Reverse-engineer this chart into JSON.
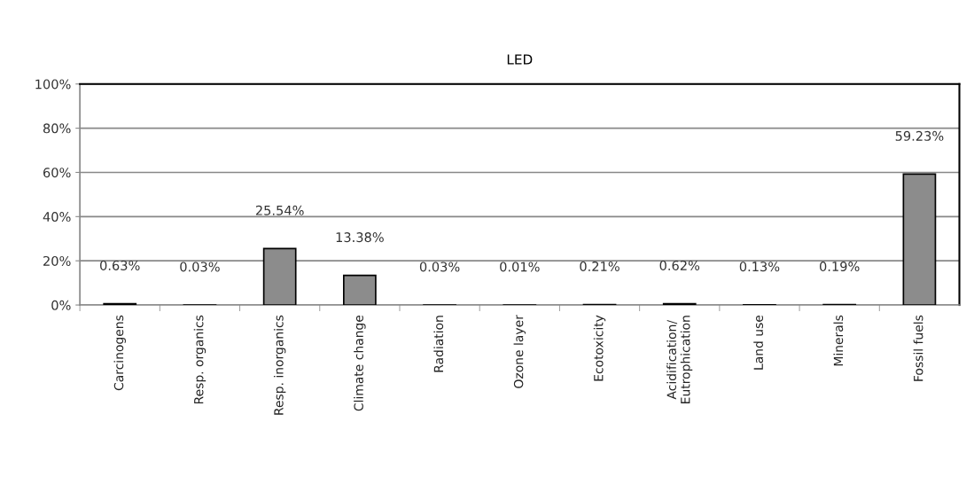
{
  "chart_data": {
    "type": "bar",
    "title": "LED",
    "categories": [
      "Carcinogens",
      "Resp. organics",
      "Resp. inorganics",
      "Climate change",
      "Radiation",
      "Ozone layer",
      "Ecotoxicity",
      "Acidification/\nEutrophication",
      "Land use",
      "Minerals",
      "Fossil fuels"
    ],
    "values": [
      0.63,
      0.03,
      25.54,
      13.38,
      0.03,
      0.01,
      0.21,
      0.62,
      0.13,
      0.19,
      59.23
    ],
    "value_labels": [
      "0.63%",
      "0.03%",
      "25.54%",
      "13.38%",
      "0.03%",
      "0.01%",
      "0.21%",
      "0.62%",
      "0.13%",
      "0.19%",
      "59.23%"
    ],
    "color": "#8c8c8c",
    "ylim": [
      0,
      100
    ],
    "yticks": [
      {
        "value": 0,
        "label": "0%"
      },
      {
        "value": 20,
        "label": "20%"
      },
      {
        "value": 40,
        "label": "40%"
      },
      {
        "value": 60,
        "label": "60%"
      },
      {
        "value": 80,
        "label": "80%"
      },
      {
        "value": 100,
        "label": "100%"
      }
    ],
    "grid": "y"
  }
}
